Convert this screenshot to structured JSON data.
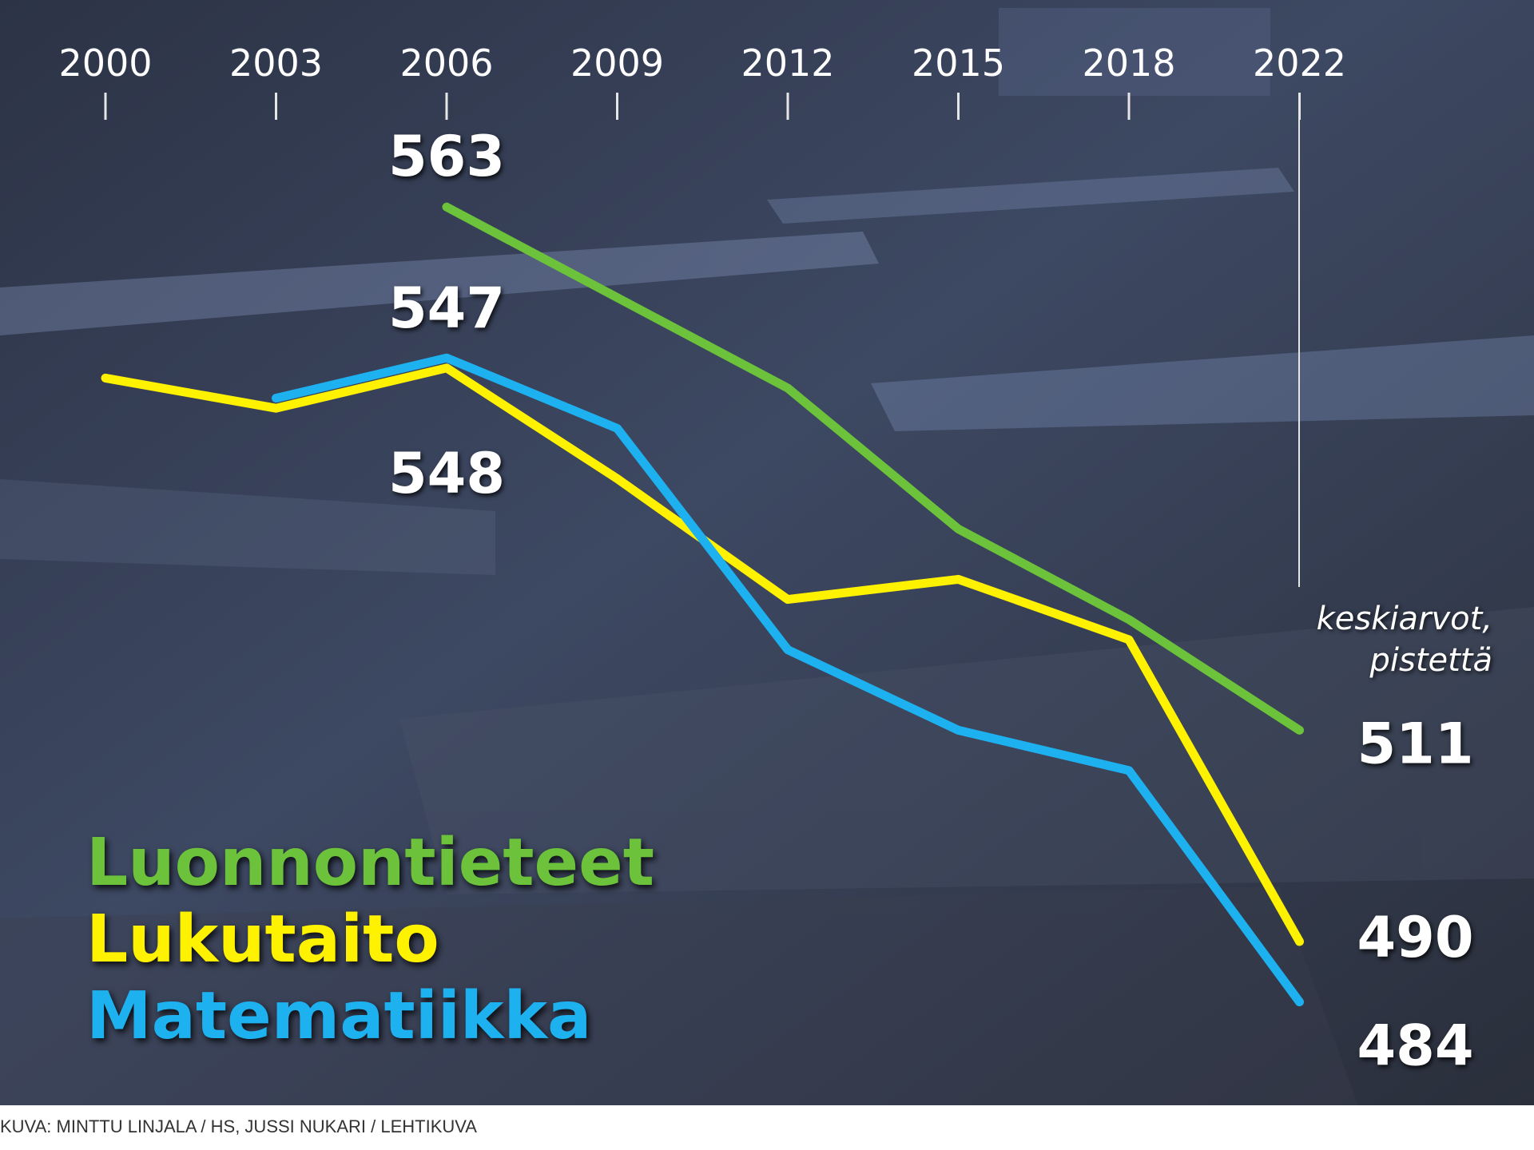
{
  "chart_data": {
    "type": "line",
    "categories": [
      "2000",
      "2003",
      "2006",
      "2009",
      "2012",
      "2015",
      "2018",
      "2022"
    ],
    "series": [
      {
        "name": "Luonnontieteet",
        "color": "#6cc23a",
        "values": [
          null,
          null,
          563,
          554,
          545,
          531,
          522,
          511
        ]
      },
      {
        "name": "Lukutaito",
        "color": "#fff200",
        "values": [
          546,
          543,
          547,
          536,
          524,
          526,
          520,
          490
        ]
      },
      {
        "name": "Matematiikka",
        "color": "#1eb1f0",
        "values": [
          null,
          544,
          548,
          541,
          519,
          511,
          507,
          484
        ]
      }
    ],
    "ylim": [
      480,
      570
    ],
    "data_label_indices": [
      2,
      7
    ],
    "annotation": [
      "keskiarvot,",
      "pistettä"
    ],
    "legend": "bottom-left",
    "credit": "KUVA: MINTTU LINJALA / HS, JUSSI NUKARI / LEHTIKUVA"
  }
}
